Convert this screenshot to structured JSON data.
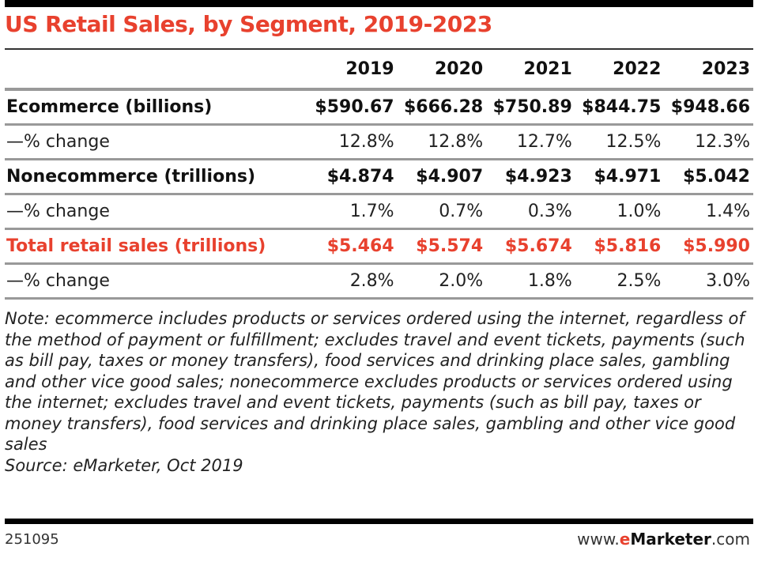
{
  "chart_data": {
    "type": "table",
    "title": "US Retail Sales, by Segment, 2019-2023",
    "columns": [
      "2019",
      "2020",
      "2021",
      "2022",
      "2023"
    ],
    "rows": [
      {
        "label": "Ecommerce (billions)",
        "style": "bold",
        "values": [
          "$590.67",
          "$666.28",
          "$750.89",
          "$844.75",
          "$948.66"
        ]
      },
      {
        "label": "—% change",
        "style": "normal",
        "values": [
          "12.8%",
          "12.8%",
          "12.7%",
          "12.5%",
          "12.3%"
        ]
      },
      {
        "label": "Nonecommerce (trillions)",
        "style": "bold",
        "values": [
          "$4.874",
          "$4.907",
          "$4.923",
          "$4.971",
          "$5.042"
        ]
      },
      {
        "label": "—% change",
        "style": "normal",
        "values": [
          "1.7%",
          "0.7%",
          "0.3%",
          "1.0%",
          "1.4%"
        ]
      },
      {
        "label": "Total retail sales (trillions)",
        "style": "red",
        "values": [
          "$5.464",
          "$5.574",
          "$5.674",
          "$5.816",
          "$5.990"
        ]
      },
      {
        "label": "—% change",
        "style": "normal",
        "values": [
          "2.8%",
          "2.0%",
          "1.8%",
          "2.5%",
          "3.0%"
        ]
      }
    ],
    "note": "Note: ecommerce includes products or services ordered using the internet, regardless of the method of payment or fulfillment; excludes travel and event tickets, payments (such as bill pay, taxes or money transfers), food services and drinking place sales, gambling and other vice good sales; nonecommerce excludes products or services ordered using the internet; excludes travel and event tickets, payments (such as bill pay, taxes or money transfers), food services and drinking place sales, gambling and other vice good sales",
    "source": "Source: eMarketer, Oct 2019"
  },
  "footer": {
    "chart_id": "251095",
    "site_prefix": "www.",
    "site_e": "e",
    "site_brand": "Marketer",
    "site_suffix": ".com"
  },
  "colors": {
    "accent": "#e8412e"
  }
}
